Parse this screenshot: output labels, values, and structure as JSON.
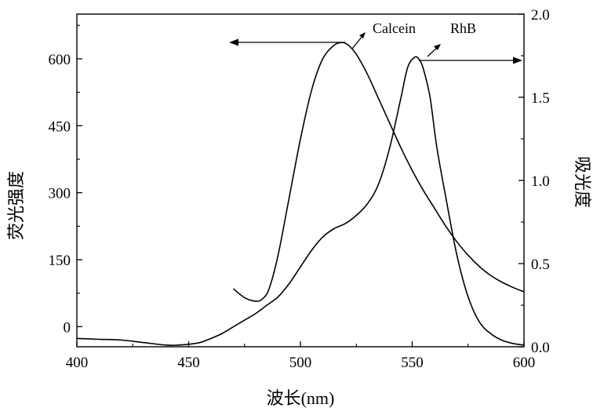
{
  "chart_data": {
    "type": "line",
    "xlabel": "波长(nm)",
    "ylabel_left": "荧光强度",
    "ylabel_right": "吸光度",
    "xlim": [
      400,
      600
    ],
    "xticks": [
      "400",
      "450",
      "500",
      "550",
      "600"
    ],
    "ylim_left": [
      -45,
      700
    ],
    "yticks_left": [
      "0",
      "150",
      "300",
      "450",
      "600"
    ],
    "ylim_right": [
      0.0,
      2.0
    ],
    "yticks_right": [
      "0.0",
      "0.5",
      "1.0",
      "1.5",
      "2.0"
    ],
    "grid": false,
    "annotations": [
      {
        "text": "Calcein",
        "series": "Calcein",
        "axis": "left"
      },
      {
        "text": "RhB",
        "series": "RhB",
        "axis": "right"
      }
    ],
    "series": [
      {
        "name": "Calcein",
        "axis": "left",
        "x": [
          470,
          475,
          480,
          483,
          486,
          490,
          495,
          500,
          505,
          510,
          515,
          518,
          520,
          522,
          525,
          530,
          535,
          540,
          545,
          550,
          555,
          560,
          565,
          570,
          575,
          580,
          585,
          590,
          595,
          600
        ],
        "y": [
          85,
          65,
          57,
          62,
          85,
          160,
          290,
          420,
          530,
          600,
          630,
          636,
          635,
          628,
          610,
          565,
          510,
          455,
          400,
          350,
          305,
          265,
          225,
          190,
          160,
          135,
          115,
          100,
          88,
          78
        ]
      },
      {
        "name": "RhB",
        "axis": "right",
        "x": [
          400,
          410,
          420,
          430,
          440,
          445,
          450,
          455,
          460,
          465,
          470,
          475,
          480,
          485,
          490,
          495,
          500,
          505,
          510,
          515,
          520,
          525,
          530,
          535,
          540,
          545,
          548,
          551,
          553,
          555,
          558,
          561,
          565,
          570,
          575,
          580,
          585,
          590,
          595,
          600
        ],
        "y": [
          0.05,
          0.045,
          0.04,
          0.025,
          0.01,
          0.01,
          0.015,
          0.025,
          0.05,
          0.08,
          0.12,
          0.16,
          0.2,
          0.25,
          0.3,
          0.38,
          0.48,
          0.58,
          0.66,
          0.71,
          0.74,
          0.79,
          0.86,
          0.98,
          1.2,
          1.5,
          1.68,
          1.74,
          1.73,
          1.67,
          1.5,
          1.2,
          0.9,
          0.55,
          0.3,
          0.15,
          0.08,
          0.04,
          0.02,
          0.01
        ]
      }
    ]
  }
}
